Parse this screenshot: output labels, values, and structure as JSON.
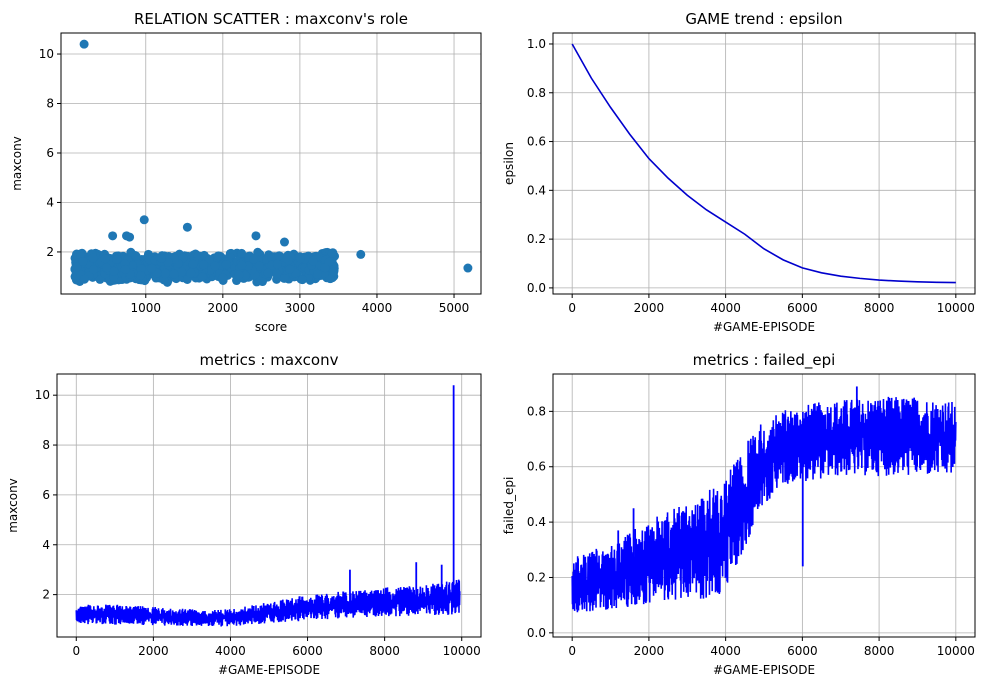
{
  "chart_data": [
    {
      "type": "scatter",
      "title": "RELATION SCATTER : maxconv's role",
      "xlabel": "score",
      "ylabel": "maxconv",
      "xlim": [
        -100,
        5350
      ],
      "ylim": [
        0.3,
        10.85
      ],
      "xticks": [
        1000,
        2000,
        3000,
        4000,
        5000
      ],
      "yticks": [
        2,
        4,
        6,
        8,
        10
      ],
      "grid": true,
      "color": "#1f77b4",
      "dense_cloud": {
        "x_range": [
          80,
          3450
        ],
        "y_range": [
          0.6,
          2.3
        ]
      },
      "points": [
        {
          "x": 200,
          "y": 10.4
        },
        {
          "x": 5180,
          "y": 1.35
        },
        {
          "x": 3790,
          "y": 1.9
        },
        {
          "x": 980,
          "y": 3.3
        },
        {
          "x": 1540,
          "y": 3.0
        },
        {
          "x": 2430,
          "y": 2.65
        },
        {
          "x": 570,
          "y": 2.65
        },
        {
          "x": 750,
          "y": 2.65
        },
        {
          "x": 790,
          "y": 2.6
        },
        {
          "x": 3420,
          "y": 1.95
        },
        {
          "x": 3440,
          "y": 1.2
        },
        {
          "x": 2800,
          "y": 2.4
        }
      ]
    },
    {
      "type": "line",
      "title": "GAME trend : epsilon",
      "xlabel": "#GAME-EPISODE",
      "ylabel": "epsilon",
      "xlim": [
        -500,
        10500
      ],
      "ylim": [
        -0.025,
        1.045
      ],
      "xticks": [
        0,
        2000,
        4000,
        6000,
        8000,
        10000
      ],
      "yticks": [
        0.0,
        0.2,
        0.4,
        0.6,
        0.8,
        1.0
      ],
      "ytick_format": 1,
      "grid": true,
      "color": "#0000cd",
      "x": [
        0,
        500,
        1000,
        1500,
        2000,
        2500,
        3000,
        3500,
        4000,
        4500,
        5000,
        5500,
        6000,
        6500,
        7000,
        7500,
        8000,
        8500,
        9000,
        9500,
        10000
      ],
      "y": [
        1.0,
        0.86,
        0.74,
        0.63,
        0.53,
        0.45,
        0.38,
        0.32,
        0.27,
        0.22,
        0.16,
        0.115,
        0.082,
        0.062,
        0.048,
        0.039,
        0.032,
        0.028,
        0.025,
        0.023,
        0.022
      ]
    },
    {
      "type": "line",
      "title": "metrics : maxconv",
      "xlabel": "#GAME-EPISODE",
      "ylabel": "maxconv",
      "xlim": [
        -500,
        10500
      ],
      "ylim": [
        0.3,
        10.85
      ],
      "xticks": [
        0,
        2000,
        4000,
        6000,
        8000,
        10000
      ],
      "yticks": [
        2,
        4,
        6,
        8,
        10
      ],
      "grid": true,
      "color": "#0000ff",
      "band": {
        "x": [
          0,
          1000,
          2000,
          3000,
          4000,
          5000,
          6000,
          7000,
          8000,
          9000,
          9950
        ],
        "low": [
          0.75,
          0.75,
          0.72,
          0.7,
          0.68,
          0.8,
          0.9,
          1.0,
          1.05,
          1.1,
          1.0
        ],
        "high": [
          1.65,
          1.65,
          1.55,
          1.45,
          1.45,
          1.75,
          2.05,
          2.2,
          2.35,
          2.45,
          2.7
        ]
      },
      "spikes": [
        {
          "x": 7100,
          "y": 3.0
        },
        {
          "x": 8820,
          "y": 3.3
        },
        {
          "x": 9480,
          "y": 3.2
        },
        {
          "x": 9790,
          "y": 10.4
        }
      ]
    },
    {
      "type": "line",
      "title": "metrics : failed_epi",
      "xlabel": "#GAME-EPISODE",
      "ylabel": "failed_epi",
      "xlim": [
        -500,
        10500
      ],
      "ylim": [
        -0.015,
        0.935
      ],
      "xticks": [
        0,
        2000,
        4000,
        6000,
        8000,
        10000
      ],
      "yticks": [
        0.0,
        0.2,
        0.4,
        0.6,
        0.8
      ],
      "ytick_format": 1,
      "grid": true,
      "color": "#0000ff",
      "band": {
        "x": [
          0,
          1000,
          2000,
          3000,
          3800,
          4300,
          4800,
          5500,
          6000,
          7000,
          8000,
          9000,
          10000
        ],
        "low": [
          0.06,
          0.07,
          0.09,
          0.1,
          0.1,
          0.2,
          0.4,
          0.52,
          0.53,
          0.55,
          0.55,
          0.55,
          0.55
        ],
        "high": [
          0.28,
          0.34,
          0.42,
          0.5,
          0.56,
          0.65,
          0.77,
          0.82,
          0.84,
          0.86,
          0.87,
          0.87,
          0.85
        ]
      },
      "spikes": [
        {
          "x": 1200,
          "y": 0.37
        },
        {
          "x": 1600,
          "y": 0.45
        },
        {
          "x": 7420,
          "y": 0.89
        },
        {
          "x": 6010,
          "y": 0.24
        }
      ]
    }
  ]
}
